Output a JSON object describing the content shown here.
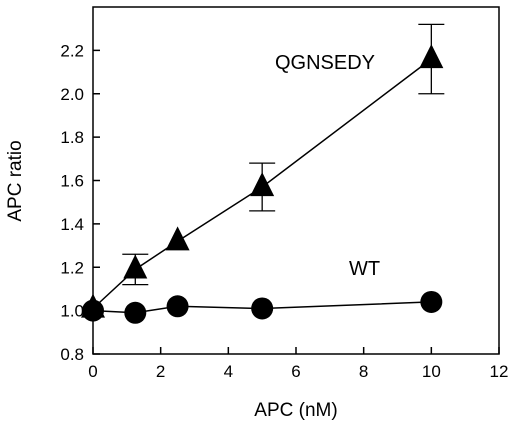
{
  "chart_data": {
    "type": "scatter",
    "xlabel": "APC (nM)",
    "ylabel": "APC ratio",
    "xlim": [
      0,
      12
    ],
    "ylim": [
      0.8,
      2.4
    ],
    "xticks": [
      0,
      2,
      4,
      6,
      8,
      10,
      12
    ],
    "yticks": [
      0.8,
      1.0,
      1.2,
      1.4,
      1.6,
      1.8,
      2.0,
      2.2
    ],
    "x_tick_labels": [
      "0",
      "2",
      "4",
      "6",
      "8",
      "10",
      "12"
    ],
    "y_tick_labels": [
      "0.8",
      "1.0",
      "1.2",
      "1.4",
      "1.6",
      "1.8",
      "2.0",
      "2.2"
    ],
    "grid": false,
    "series": [
      {
        "name": "QGNSEDY",
        "marker": "triangle",
        "color": "#000000",
        "points": [
          {
            "x": 0,
            "y": 1.01,
            "err": 0
          },
          {
            "x": 1.25,
            "y": 1.19,
            "err": 0.07
          },
          {
            "x": 2.5,
            "y": 1.32,
            "err": 0
          },
          {
            "x": 5,
            "y": 1.57,
            "err": 0.11
          },
          {
            "x": 10,
            "y": 2.16,
            "err": 0.16
          }
        ]
      },
      {
        "name": "WT",
        "marker": "circle",
        "color": "#000000",
        "points": [
          {
            "x": 0,
            "y": 1.0
          },
          {
            "x": 1.25,
            "y": 0.99
          },
          {
            "x": 2.5,
            "y": 1.02
          },
          {
            "x": 5,
            "y": 1.01
          },
          {
            "x": 10,
            "y": 1.04
          }
        ]
      }
    ]
  }
}
